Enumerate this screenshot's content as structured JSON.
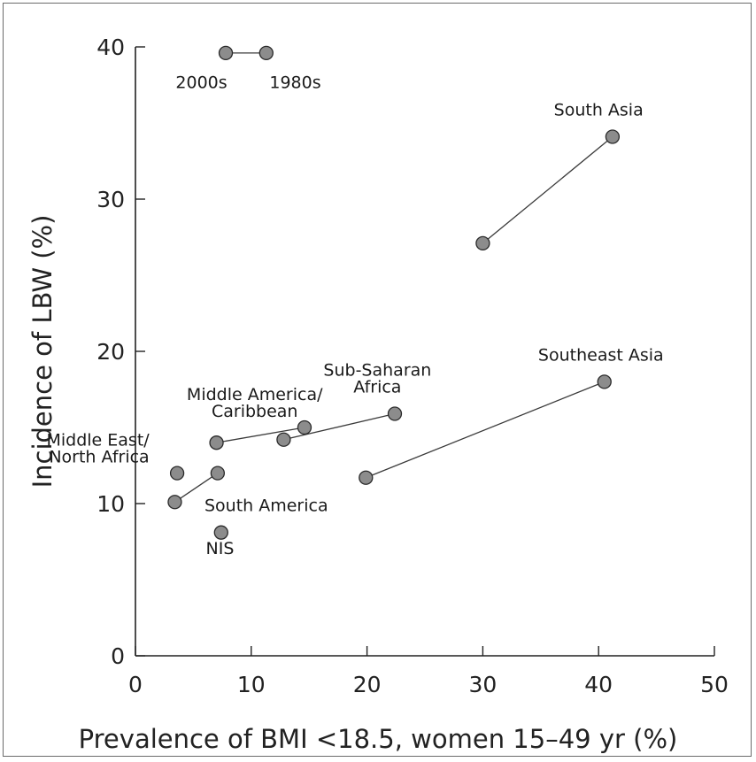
{
  "chart_data": {
    "type": "scatter",
    "xlabel": "Prevalence of BMI <18.5, women 15–49 yr (%)",
    "ylabel": "Incidence of LBW (%)",
    "xlim": [
      0,
      50
    ],
    "ylim": [
      0,
      40
    ],
    "xticks": [
      0,
      10,
      20,
      30,
      40,
      50
    ],
    "yticks": [
      0,
      10,
      20,
      30,
      40
    ],
    "grid": false,
    "marker_color": "#8c8c8c",
    "line_color": "#3a3a3a",
    "legend": {
      "from_label": "1980s",
      "to_label": "2000s",
      "points": [
        [
          11.3,
          39.6
        ],
        [
          7.8,
          39.6
        ]
      ]
    },
    "regions": [
      {
        "label": "South Asia",
        "points": [
          [
            41.2,
            34.1
          ],
          [
            30.0,
            27.1
          ]
        ]
      },
      {
        "label": "Southeast Asia",
        "points": [
          [
            40.5,
            18.0
          ],
          [
            19.9,
            11.7
          ]
        ]
      },
      {
        "label": "Sub-Saharan Africa",
        "points": [
          [
            22.4,
            15.9
          ],
          [
            12.8,
            14.2
          ]
        ]
      },
      {
        "label": "Middle America/ Caribbean",
        "points": [
          [
            14.6,
            15.0
          ],
          [
            7.0,
            14.0
          ]
        ]
      },
      {
        "label": "South America",
        "points": [
          [
            7.1,
            12.0
          ],
          [
            3.4,
            10.1
          ]
        ]
      },
      {
        "label": "Middle East/ North Africa",
        "points": [
          [
            3.6,
            12.0
          ]
        ]
      },
      {
        "label": "NIS",
        "points": [
          [
            7.4,
            8.1
          ]
        ]
      }
    ],
    "annotations": [
      {
        "id": "label-1980s",
        "text": "1980s",
        "x": 13.8,
        "y": 37.3,
        "anchor": "middle"
      },
      {
        "id": "label-2000s",
        "text": "2000s",
        "x": 5.7,
        "y": 37.3,
        "anchor": "middle"
      },
      {
        "id": "label-south-asia",
        "text": "South Asia",
        "x": 40.0,
        "y": 35.5,
        "anchor": "middle"
      },
      {
        "id": "label-southeast-asia",
        "text": "Southeast Asia",
        "x": 40.2,
        "y": 19.4,
        "anchor": "middle"
      },
      {
        "id": "label-sub-saharan-1",
        "text": "Sub-Saharan",
        "x": 20.9,
        "y": 18.4,
        "anchor": "middle"
      },
      {
        "id": "label-sub-saharan-2",
        "text": "Africa",
        "x": 20.9,
        "y": 17.3,
        "anchor": "middle"
      },
      {
        "id": "label-middle-america-1",
        "text": "Middle America/",
        "x": 10.3,
        "y": 16.8,
        "anchor": "middle"
      },
      {
        "id": "label-middle-america-2",
        "text": "Caribbean",
        "x": 10.3,
        "y": 15.7,
        "anchor": "middle"
      },
      {
        "id": "label-middle-east-1",
        "text": "Middle East/",
        "x": 1.2,
        "y": 13.8,
        "anchor": "end"
      },
      {
        "id": "label-middle-east-2",
        "text": "North Africa",
        "x": 1.2,
        "y": 12.7,
        "anchor": "end"
      },
      {
        "id": "label-south-america",
        "text": "South America",
        "x": 11.3,
        "y": 9.5,
        "anchor": "middle"
      },
      {
        "id": "label-nis",
        "text": "NIS",
        "x": 7.3,
        "y": 6.7,
        "anchor": "middle"
      }
    ]
  }
}
